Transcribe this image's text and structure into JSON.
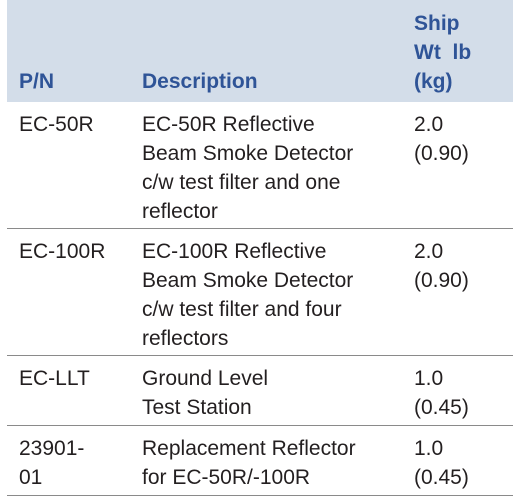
{
  "header": {
    "part_number": "P/N",
    "description": "Description",
    "weight_lines": [
      "Ship",
      "Wt  lb",
      "(kg)"
    ]
  },
  "rows": [
    {
      "pn_lines": [
        "EC-50R"
      ],
      "desc_lines": [
        "EC-50R Reflective",
        "Beam Smoke Detector",
        "c/w test filter and one",
        "reflector"
      ],
      "wt_lines": [
        "2.0",
        "(0.90)"
      ]
    },
    {
      "pn_lines": [
        "EC-100R"
      ],
      "desc_lines": [
        "EC-100R Reflective",
        "Beam Smoke Detector",
        "c/w test filter and four",
        "reflectors"
      ],
      "wt_lines": [
        "2.0",
        "(0.90)"
      ]
    },
    {
      "pn_lines": [
        "EC-LLT"
      ],
      "desc_lines": [
        "Ground Level",
        "Test Station"
      ],
      "wt_lines": [
        "1.0",
        "(0.45)"
      ]
    },
    {
      "pn_lines": [
        "23901-",
        "01"
      ],
      "desc_lines": [
        "Replacement Reflector",
        "for EC-50R/-100R"
      ],
      "wt_lines": [
        "1.0",
        "(0.45)"
      ]
    }
  ],
  "colors": {
    "header_background": "#d3dde9",
    "header_text": "#2f5497",
    "body_text": "#231f20",
    "row_divider": "#8a8a8a"
  }
}
